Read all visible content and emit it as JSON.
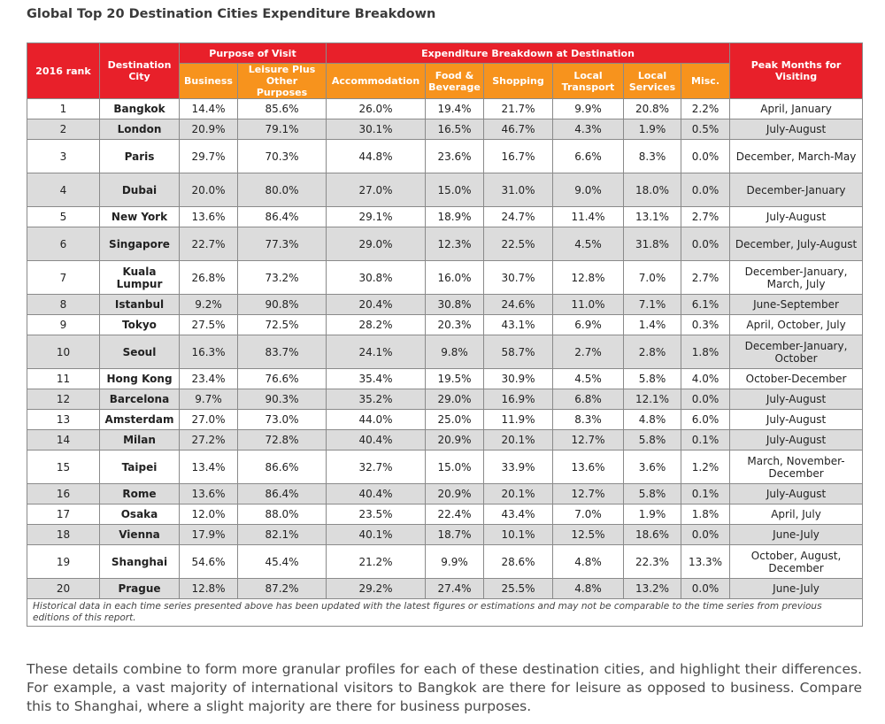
{
  "title": "Global Top 20 Destination Cities Expenditure Breakdown",
  "headers": {
    "rank": "2016 rank",
    "city": "Destination City",
    "purpose_group": "Purpose of Visit",
    "business": "Business",
    "leisure": "Leisure Plus Other Purposes",
    "expenditure_group": "Expenditure Breakdown at Destination",
    "accommodation": "Accommodation",
    "food": "Food & Beverage",
    "shopping": "Shopping",
    "transport": "Local Transport",
    "services": "Local Services",
    "misc": "Misc.",
    "peak": "Peak Months for Visiting"
  },
  "colors": {
    "header_red": "#e8202a",
    "header_orange": "#f7931d",
    "row_alt": "#dcdcdc"
  },
  "chart_data": {
    "type": "table",
    "title": "Global Top 20 Destination Cities Expenditure Breakdown",
    "columns": [
      "2016 rank",
      "Destination City",
      "Business",
      "Leisure Plus Other Purposes",
      "Accommodation",
      "Food & Beverage",
      "Shopping",
      "Local Transport",
      "Local Services",
      "Misc.",
      "Peak Months for Visiting"
    ],
    "rows": [
      [
        "1",
        "Bangkok",
        "14.4%",
        "85.6%",
        "26.0%",
        "19.4%",
        "21.7%",
        "9.9%",
        "20.8%",
        "2.2%",
        "April, January"
      ],
      [
        "2",
        "London",
        "20.9%",
        "79.1%",
        "30.1%",
        "16.5%",
        "46.7%",
        "4.3%",
        "1.9%",
        "0.5%",
        "July-August"
      ],
      [
        "3",
        "Paris",
        "29.7%",
        "70.3%",
        "44.8%",
        "23.6%",
        "16.7%",
        "6.6%",
        "8.3%",
        "0.0%",
        "December, March-May"
      ],
      [
        "4",
        "Dubai",
        "20.0%",
        "80.0%",
        "27.0%",
        "15.0%",
        "31.0%",
        "9.0%",
        "18.0%",
        "0.0%",
        "December-January"
      ],
      [
        "5",
        "New York",
        "13.6%",
        "86.4%",
        "29.1%",
        "18.9%",
        "24.7%",
        "11.4%",
        "13.1%",
        "2.7%",
        "July-August"
      ],
      [
        "6",
        "Singapore",
        "22.7%",
        "77.3%",
        "29.0%",
        "12.3%",
        "22.5%",
        "4.5%",
        "31.8%",
        "0.0%",
        "December, July-August"
      ],
      [
        "7",
        "Kuala Lumpur",
        "26.8%",
        "73.2%",
        "30.8%",
        "16.0%",
        "30.7%",
        "12.8%",
        "7.0%",
        "2.7%",
        "December-January, March, July"
      ],
      [
        "8",
        "Istanbul",
        "9.2%",
        "90.8%",
        "20.4%",
        "30.8%",
        "24.6%",
        "11.0%",
        "7.1%",
        "6.1%",
        "June-September"
      ],
      [
        "9",
        "Tokyo",
        "27.5%",
        "72.5%",
        "28.2%",
        "20.3%",
        "43.1%",
        "6.9%",
        "1.4%",
        "0.3%",
        "April, October, July"
      ],
      [
        "10",
        "Seoul",
        "16.3%",
        "83.7%",
        "24.1%",
        "9.8%",
        "58.7%",
        "2.7%",
        "2.8%",
        "1.8%",
        "December-January, October"
      ],
      [
        "11",
        "Hong Kong",
        "23.4%",
        "76.6%",
        "35.4%",
        "19.5%",
        "30.9%",
        "4.5%",
        "5.8%",
        "4.0%",
        "October-December"
      ],
      [
        "12",
        "Barcelona",
        "9.7%",
        "90.3%",
        "35.2%",
        "29.0%",
        "16.9%",
        "6.8%",
        "12.1%",
        "0.0%",
        "July-August"
      ],
      [
        "13",
        "Amsterdam",
        "27.0%",
        "73.0%",
        "44.0%",
        "25.0%",
        "11.9%",
        "8.3%",
        "4.8%",
        "6.0%",
        "July-August"
      ],
      [
        "14",
        "Milan",
        "27.2%",
        "72.8%",
        "40.4%",
        "20.9%",
        "20.1%",
        "12.7%",
        "5.8%",
        "0.1%",
        "July-August"
      ],
      [
        "15",
        "Taipei",
        "13.4%",
        "86.6%",
        "32.7%",
        "15.0%",
        "33.9%",
        "13.6%",
        "3.6%",
        "1.2%",
        "March, November-December"
      ],
      [
        "16",
        "Rome",
        "13.6%",
        "86.4%",
        "40.4%",
        "20.9%",
        "20.1%",
        "12.7%",
        "5.8%",
        "0.1%",
        "July-August"
      ],
      [
        "17",
        "Osaka",
        "12.0%",
        "88.0%",
        "23.5%",
        "22.4%",
        "43.4%",
        "7.0%",
        "1.9%",
        "1.8%",
        "April, July"
      ],
      [
        "18",
        "Vienna",
        "17.9%",
        "82.1%",
        "40.1%",
        "18.7%",
        "10.1%",
        "12.5%",
        "18.6%",
        "0.0%",
        "June-July"
      ],
      [
        "19",
        "Shanghai",
        "54.6%",
        "45.4%",
        "21.2%",
        "9.9%",
        "28.6%",
        "4.8%",
        "22.3%",
        "13.3%",
        "October, August, December"
      ],
      [
        "20",
        "Prague",
        "12.8%",
        "87.2%",
        "29.2%",
        "27.4%",
        "25.5%",
        "4.8%",
        "13.2%",
        "0.0%",
        "June-July"
      ]
    ]
  },
  "footnote": "Historical data in each time series presented above has been updated with the latest figures or estimations and may not be comparable to the time series from previous editions of this report.",
  "paragraph": "These details combine to form more granular profiles for each of these destination cities, and highlight their differences. For example, a vast majority of international visitors to Bangkok are there for leisure as opposed to business. Compare this to Shanghai, where a slight majority are there for business purposes."
}
